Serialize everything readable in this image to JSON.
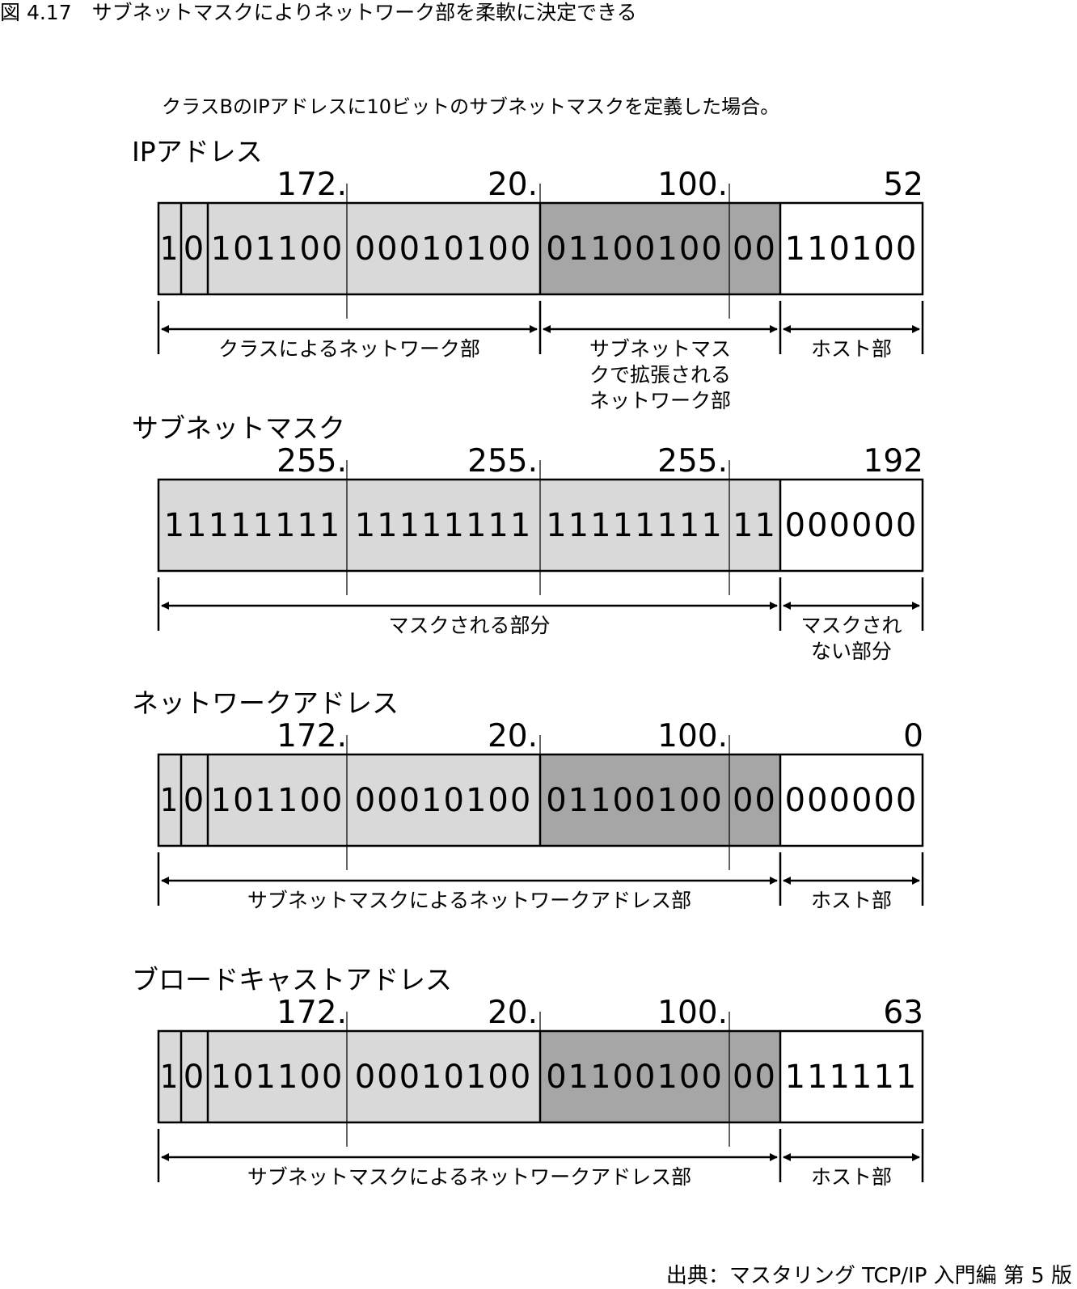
{
  "figure_title": "図 4.17　サブネットマスクによりネットワーク部を柔軟に決定できる",
  "subtitle": "クラスBのIPアドレスに10ビットのサブネットマスクを定義した場合。",
  "source": "出典：マスタリング TCP/IP 入門編 第 5 版",
  "colors": {
    "class_net": "#d9d9d9",
    "subnet_ext": "#a6a6a6",
    "host": "#ffffff",
    "line": "#000000"
  },
  "sections": [
    {
      "title": "IPアドレス",
      "octets": [
        "172.",
        "20.",
        "100.",
        "52"
      ],
      "bits": [
        "1",
        "0",
        "101100",
        "00010100",
        "01100100",
        "00",
        "110100"
      ],
      "ranges": [
        {
          "label_lines": [
            "クラスによるネットワーク部"
          ]
        },
        {
          "label_lines": [
            "サブネットマス",
            "クで拡張される",
            "ネットワーク部"
          ]
        },
        {
          "label_lines": [
            "ホスト部"
          ]
        }
      ]
    },
    {
      "title": "サブネットマスク",
      "octets": [
        "255.",
        "255.",
        "255.",
        "192"
      ],
      "bits": [
        "11111111",
        "11111111",
        "11111111",
        "11",
        "000000"
      ],
      "ranges": [
        {
          "label_lines": [
            "マスクされる部分"
          ]
        },
        {
          "label_lines": [
            "マスクされ",
            "ない部分"
          ]
        }
      ]
    },
    {
      "title": "ネットワークアドレス",
      "octets": [
        "172.",
        "20.",
        "100.",
        "0"
      ],
      "bits": [
        "1",
        "0",
        "101100",
        "00010100",
        "01100100",
        "00",
        "000000"
      ],
      "ranges": [
        {
          "label_lines": [
            "サブネットマスクによるネットワークアドレス部"
          ]
        },
        {
          "label_lines": [
            "ホスト部"
          ]
        }
      ]
    },
    {
      "title": "ブロードキャストアドレス",
      "octets": [
        "172.",
        "20.",
        "100.",
        "63"
      ],
      "bits": [
        "1",
        "0",
        "101100",
        "00010100",
        "01100100",
        "00",
        "111111"
      ],
      "ranges": [
        {
          "label_lines": [
            "サブネットマスクによるネットワークアドレス部"
          ]
        },
        {
          "label_lines": [
            "ホスト部"
          ]
        }
      ]
    }
  ]
}
